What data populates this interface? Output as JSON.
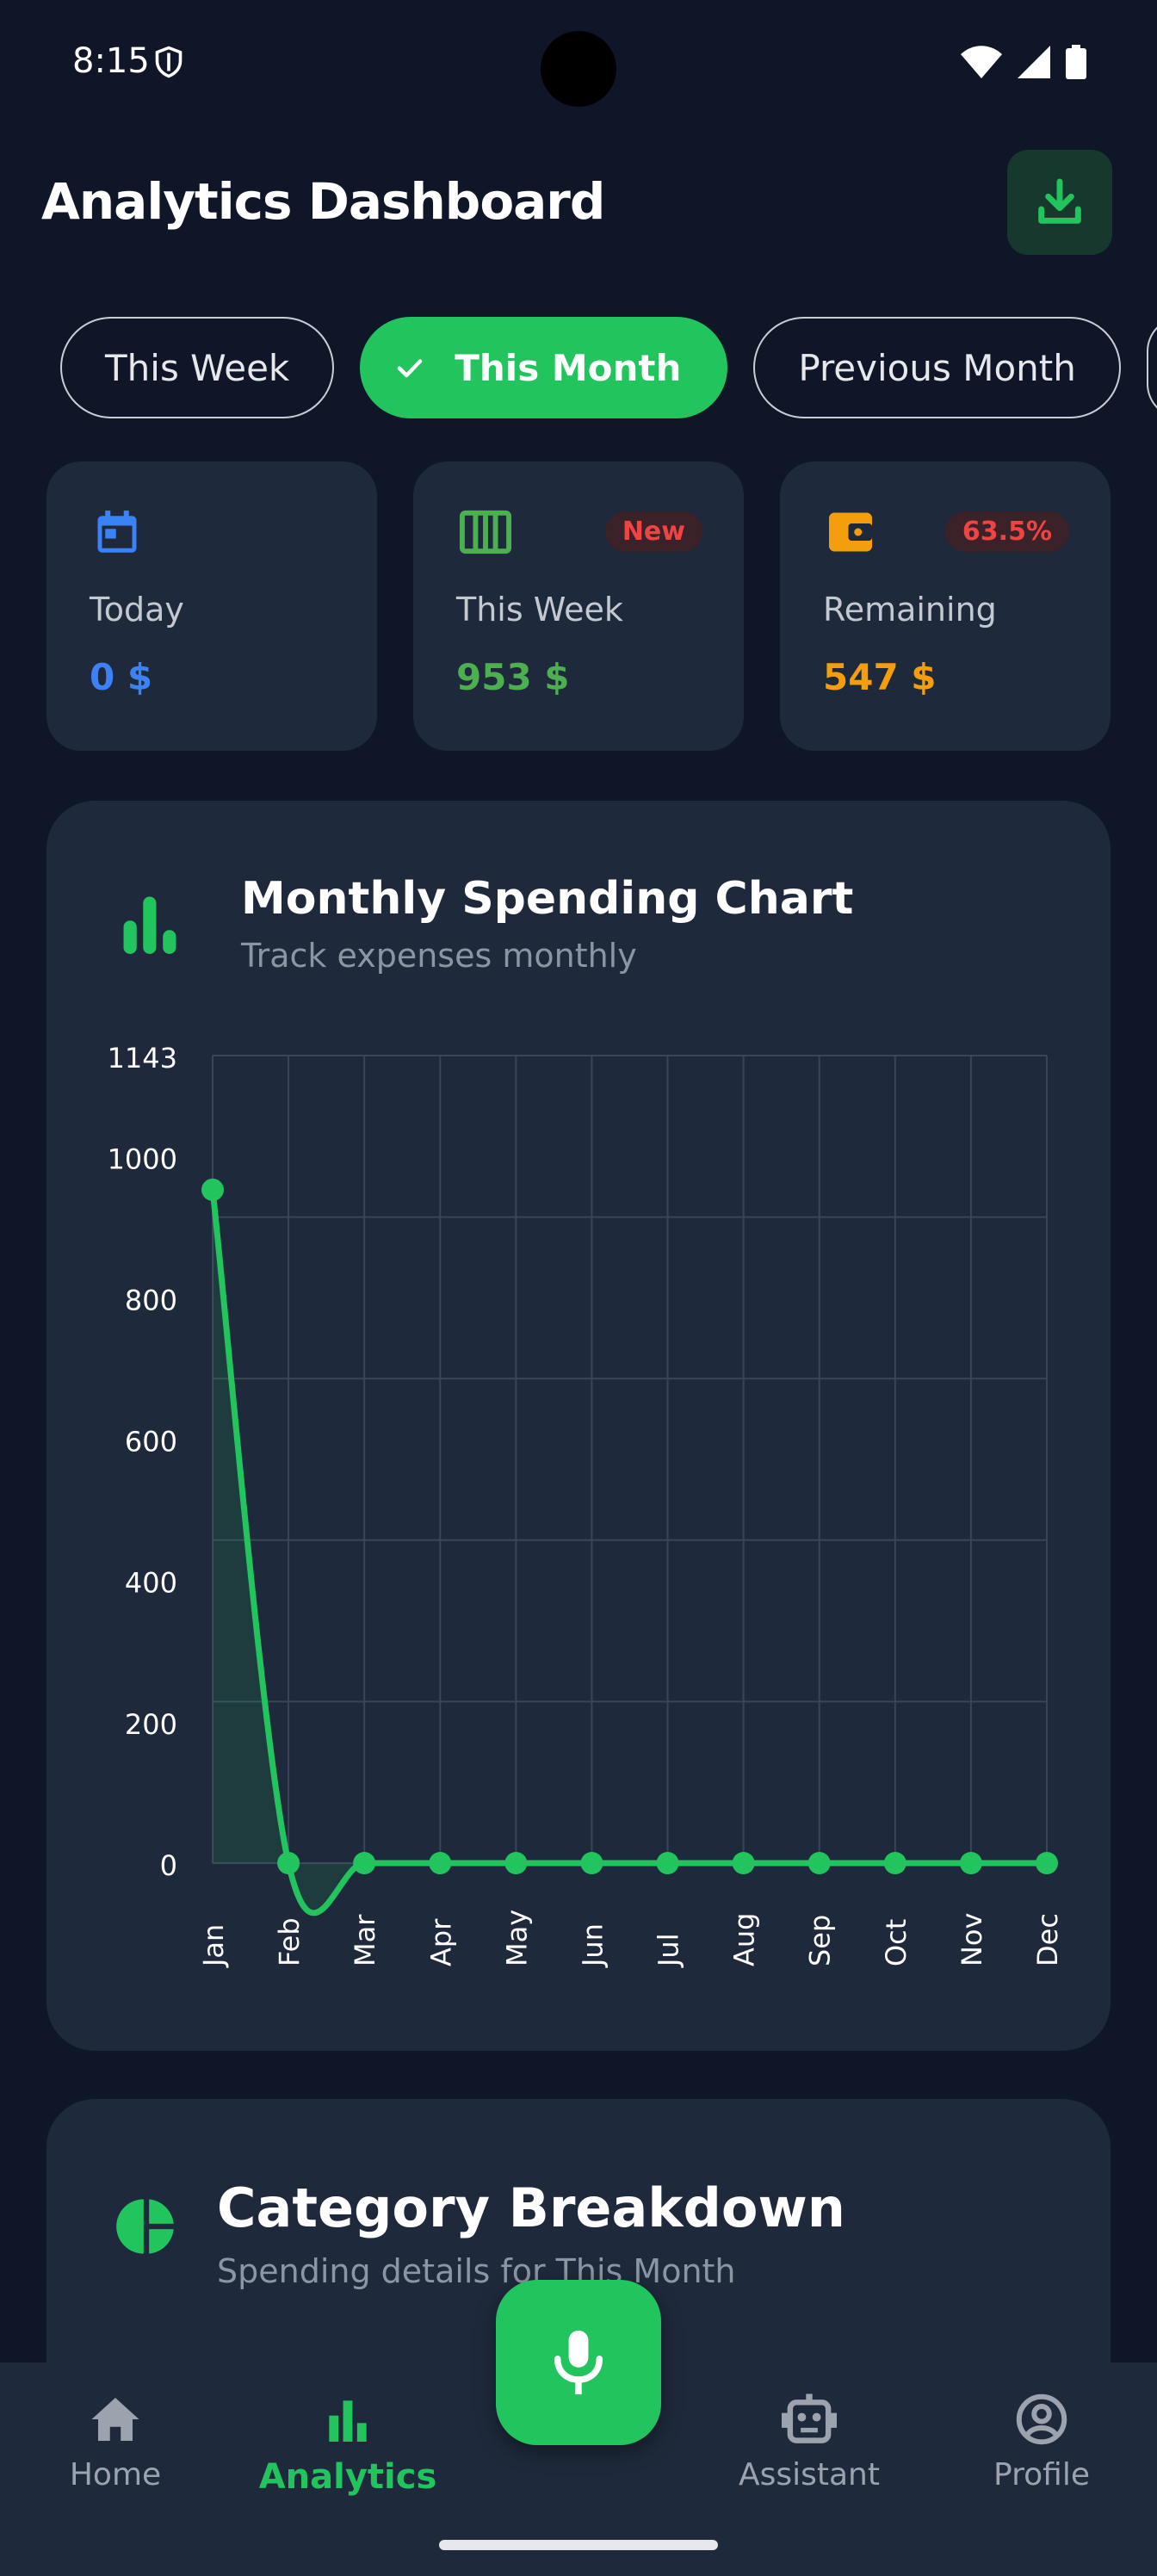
{
  "status": {
    "time": "8:15"
  },
  "header": {
    "title": "Analytics Dashboard"
  },
  "filters": [
    {
      "label": "This Week",
      "active": false
    },
    {
      "label": "This Month",
      "active": true
    },
    {
      "label": "Previous Month",
      "active": false
    }
  ],
  "summary": [
    {
      "label": "Today",
      "value": "0 $",
      "icon": "calendar-icon",
      "color": "#3b82f6",
      "badge": ""
    },
    {
      "label": "This Week",
      "value": "953 $",
      "icon": "view-week-icon",
      "color": "#4caf50",
      "badge": "New"
    },
    {
      "label": "Remaining",
      "value": "547 $",
      "icon": "wallet-icon",
      "color": "#f59e0b",
      "badge": "63.5%"
    }
  ],
  "spending_chart": {
    "title": "Monthly Spending Chart",
    "subtitle": "Track expenses monthly"
  },
  "chart_data": {
    "type": "line",
    "categories": [
      "Jan",
      "Feb",
      "Mar",
      "Apr",
      "May",
      "Jun",
      "Jul",
      "Aug",
      "Sep",
      "Oct",
      "Nov",
      "Dec"
    ],
    "values": [
      953,
      0,
      0,
      0,
      0,
      0,
      0,
      0,
      0,
      0,
      0,
      0
    ],
    "ylim": [
      0,
      1143
    ],
    "yticks": [
      "0",
      "200",
      "400",
      "600",
      "800",
      "1000",
      "1143"
    ],
    "grid": true,
    "color": "#22c45e"
  },
  "category": {
    "title": "Category Breakdown",
    "subtitle": "Spending details for This Month"
  },
  "nav": {
    "home": "Home",
    "analytics": "Analytics",
    "assistant": "Assistant",
    "profile": "Profile"
  }
}
